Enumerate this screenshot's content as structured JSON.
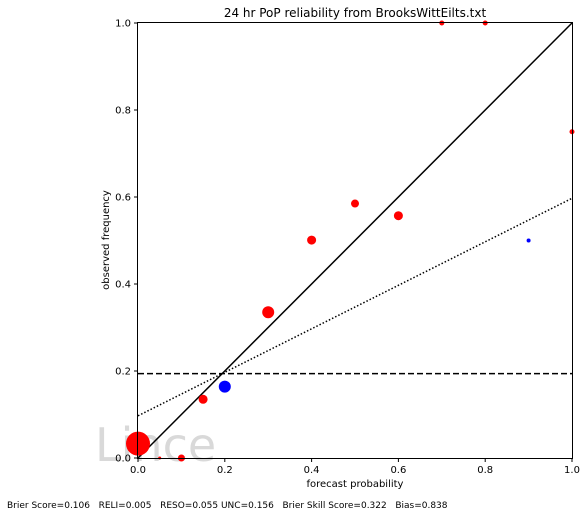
{
  "chart_data": {
    "type": "scatter",
    "title": "24 hr PoP reliability from BrooksWittEilts.txt",
    "xlabel": "forecast probability",
    "ylabel": "observed frequency",
    "xlim": [
      0,
      1
    ],
    "ylim": [
      0,
      1
    ],
    "x_ticks": [
      "0.0",
      "0.2",
      "0.4",
      "0.6",
      "0.8",
      "1.0"
    ],
    "y_ticks": [
      "0.0",
      "0.2",
      "0.4",
      "0.6",
      "0.8",
      "1.0"
    ],
    "grid": false,
    "watermark": "Lince",
    "perfect_reliability_line": {
      "x": [
        0,
        1
      ],
      "y": [
        0,
        1
      ],
      "style": "solid",
      "color": "#000000"
    },
    "climatology_line": {
      "y": 0.194,
      "style": "dashed",
      "color": "#000000"
    },
    "no_skill_line": {
      "x": [
        0,
        1
      ],
      "y": [
        0.097,
        0.597
      ],
      "style": "dotted",
      "color": "#000000"
    },
    "series": [
      {
        "color": "#ff0000",
        "points": [
          {
            "x": 0.0,
            "y": 0.033,
            "size": 12
          },
          {
            "x": 0.05,
            "y": 0.0,
            "size": 1.5
          },
          {
            "x": 0.1,
            "y": 0.0,
            "size": 3.5
          },
          {
            "x": 0.15,
            "y": 0.135,
            "size": 4.5
          },
          {
            "x": 0.3,
            "y": 0.335,
            "size": 6
          },
          {
            "x": 0.4,
            "y": 0.501,
            "size": 4.5
          },
          {
            "x": 0.5,
            "y": 0.585,
            "size": 4
          },
          {
            "x": 0.6,
            "y": 0.557,
            "size": 4.5
          },
          {
            "x": 0.7,
            "y": 1.0,
            "size": 2.5
          },
          {
            "x": 0.8,
            "y": 1.0,
            "size": 2.5
          },
          {
            "x": 1.0,
            "y": 0.75,
            "size": 2.5
          }
        ]
      },
      {
        "color": "#0000ff",
        "points": [
          {
            "x": 0.2,
            "y": 0.164,
            "size": 6
          },
          {
            "x": 0.9,
            "y": 0.5,
            "size": 2
          }
        ]
      }
    ]
  },
  "footer": {
    "stats": "Brier Score=0.106   RELI=0.005   RESO=0.055 UNC=0.156   Brier Skill Score=0.322   Bias=0.838"
  }
}
